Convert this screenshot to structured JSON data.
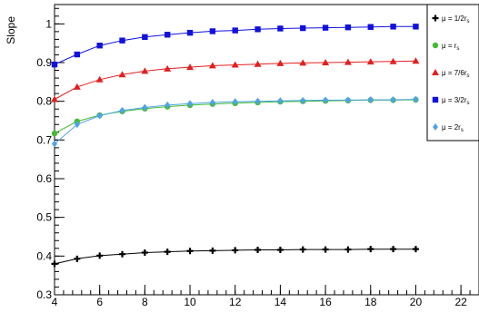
{
  "chart_data": {
    "type": "line",
    "ylabel": "Slope",
    "xlabel": "",
    "xlim": [
      4,
      22.8
    ],
    "ylim": [
      0.3,
      1.05
    ],
    "xticks": [
      4,
      6,
      8,
      10,
      12,
      14,
      16,
      18,
      20,
      22
    ],
    "yticks": [
      0.3,
      0.4,
      0.5,
      0.6,
      0.7,
      0.8,
      0.9,
      1
    ],
    "ytick_labels": [
      "0.3",
      "0.4",
      "0.5",
      "0.6",
      "0.7",
      "0.8",
      "0.9",
      "1"
    ],
    "grid": false,
    "legend_position": "right",
    "x": [
      4,
      5,
      6,
      7,
      8,
      9,
      10,
      11,
      12,
      13,
      14,
      15,
      16,
      17,
      18,
      19,
      20
    ],
    "series": [
      {
        "name": "μ = 1/2r_s",
        "label_main": "μ = 1/2r",
        "label_sub": "s",
        "color": "#000000",
        "marker": "cross",
        "values": [
          0.38,
          0.393,
          0.401,
          0.405,
          0.409,
          0.411,
          0.413,
          0.414,
          0.415,
          0.416,
          0.416,
          0.417,
          0.417,
          0.417,
          0.418,
          0.418,
          0.418
        ]
      },
      {
        "name": "μ = r_s",
        "label_main": "μ = r",
        "label_sub": "s",
        "color": "#44bb33",
        "marker": "circle",
        "values": [
          0.717,
          0.748,
          0.764,
          0.774,
          0.781,
          0.786,
          0.79,
          0.793,
          0.795,
          0.797,
          0.799,
          0.8,
          0.801,
          0.802,
          0.803,
          0.803,
          0.804
        ]
      },
      {
        "name": "μ = 7/6r_s",
        "label_main": "μ = 7/6r",
        "label_sub": "s",
        "color": "#e21f1f",
        "marker": "triangle",
        "values": [
          0.805,
          0.837,
          0.856,
          0.869,
          0.878,
          0.884,
          0.888,
          0.892,
          0.894,
          0.896,
          0.898,
          0.899,
          0.9,
          0.901,
          0.902,
          0.903,
          0.904
        ]
      },
      {
        "name": "μ = 3/2r_s",
        "label_main": "μ = 3/2r",
        "label_sub": "s",
        "color": "#1010e0",
        "marker": "square",
        "values": [
          0.895,
          0.921,
          0.944,
          0.957,
          0.966,
          0.972,
          0.977,
          0.981,
          0.983,
          0.986,
          0.988,
          0.989,
          0.99,
          0.991,
          0.992,
          0.993,
          0.993
        ]
      },
      {
        "name": "μ = 2r_s",
        "label_main": "μ = 2r",
        "label_sub": "s",
        "color": "#4fa3e6",
        "marker": "diamond",
        "values": [
          0.69,
          0.74,
          0.763,
          0.776,
          0.784,
          0.79,
          0.794,
          0.797,
          0.799,
          0.8,
          0.801,
          0.802,
          0.803,
          0.803,
          0.804,
          0.804,
          0.805
        ]
      }
    ]
  }
}
